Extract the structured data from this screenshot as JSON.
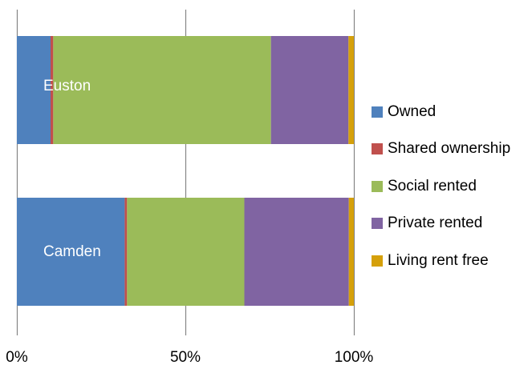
{
  "chart_data": {
    "type": "bar",
    "orientation": "horizontal",
    "stacked": "percent",
    "categories": [
      "Euston",
      "Camden"
    ],
    "series": [
      {
        "name": "Owned",
        "color": "#4F81BD",
        "values": [
          10.0,
          32.0
        ]
      },
      {
        "name": "Shared ownership",
        "color": "#C0504D",
        "values": [
          0.8,
          0.7
        ]
      },
      {
        "name": "Social rented",
        "color": "#9BBB59",
        "values": [
          64.6,
          34.8
        ]
      },
      {
        "name": "Private rented",
        "color": "#8064A2",
        "values": [
          23.0,
          31.0
        ]
      },
      {
        "name": "Living rent free",
        "color": "#D5A00A",
        "values": [
          1.6,
          1.5
        ]
      }
    ],
    "x_ticks": [
      "0%",
      "50%",
      "100%"
    ],
    "xlim": [
      0,
      100
    ],
    "grid": "vertical",
    "legend_position": "right"
  }
}
